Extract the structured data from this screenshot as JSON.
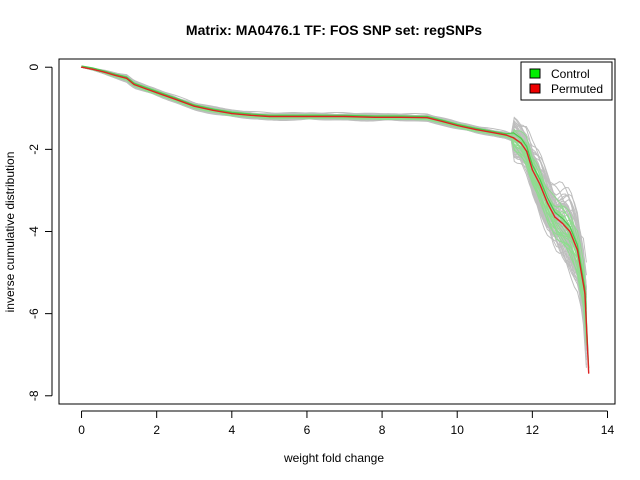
{
  "chart_data": {
    "type": "line",
    "title": "Matrix: MA0476.1 TF: FOS SNP set: regSNPs",
    "xlabel": "weight fold change",
    "ylabel": "inverse cumulative distribution",
    "xlim": [
      -0.6,
      14.2
    ],
    "ylim": [
      -8.2,
      0.2
    ],
    "x_ticks": [
      0,
      2,
      4,
      6,
      8,
      10,
      12,
      14
    ],
    "y_ticks": [
      0,
      -2,
      -4,
      -6,
      -8
    ],
    "legend": {
      "position": "top-right",
      "entries": [
        {
          "label": "Control",
          "color": "#00ee00"
        },
        {
          "label": "Permuted",
          "color": "#ee0000"
        }
      ]
    },
    "colors": {
      "control_band": "#8fdc8f",
      "permuted_band": "#bebebe",
      "main_line": "#dd2222",
      "control_line": "#4cc94c"
    },
    "series": [
      {
        "name": "Permuted",
        "x": [
          0,
          0.3,
          0.6,
          0.9,
          1.2,
          1.4,
          1.7,
          2.0,
          2.5,
          3.0,
          3.5,
          4.0,
          4.5,
          5.0,
          6.0,
          7.0,
          7.8,
          8.5,
          9.2,
          9.6,
          10.0,
          10.5,
          11.0,
          11.3,
          11.5,
          11.7,
          11.85,
          12.0,
          12.2,
          12.4,
          12.6,
          12.8,
          13.0,
          13.2,
          13.4,
          13.5
        ],
        "y": [
          0,
          -0.05,
          -0.12,
          -0.2,
          -0.27,
          -0.42,
          -0.52,
          -0.62,
          -0.78,
          -0.95,
          -1.05,
          -1.13,
          -1.17,
          -1.2,
          -1.2,
          -1.2,
          -1.22,
          -1.22,
          -1.23,
          -1.32,
          -1.42,
          -1.52,
          -1.6,
          -1.65,
          -1.72,
          -1.85,
          -2.05,
          -2.5,
          -2.85,
          -3.3,
          -3.65,
          -3.8,
          -4.0,
          -4.45,
          -5.5,
          -7.45
        ]
      }
    ]
  }
}
